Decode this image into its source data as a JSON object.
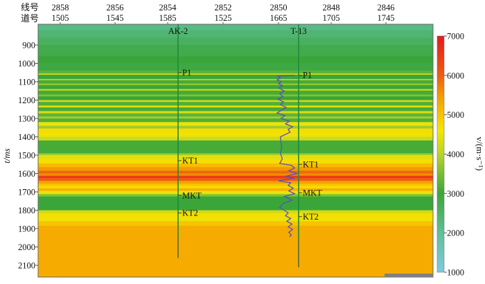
{
  "chart_data": {
    "type": "heatmap",
    "title": "",
    "top_axis": {
      "row_labels": [
        "线号",
        "道号"
      ],
      "line_numbers": [
        "2858",
        "2856",
        "2854",
        "2852",
        "2850",
        "2848",
        "2846"
      ],
      "trace_numbers": [
        "1505",
        "1545",
        "1585",
        "1525",
        "1665",
        "1705",
        "1745"
      ]
    },
    "ylabel": "t/ms",
    "ylim": [
      787,
      2164
    ],
    "yticks": [
      900,
      1000,
      1100,
      1200,
      1300,
      1400,
      1500,
      1600,
      1700,
      1800,
      1900,
      2000,
      2100
    ],
    "colorbar": {
      "label": "v/(m·s⁻¹)",
      "range": [
        1000,
        7000
      ],
      "ticks": [
        1000,
        2000,
        3000,
        4000,
        5000,
        6000,
        7000
      ],
      "stops": [
        [
          1000,
          "#7ecbe0"
        ],
        [
          2000,
          "#5fbf98"
        ],
        [
          3000,
          "#3aa63a"
        ],
        [
          4000,
          "#b8d42a"
        ],
        [
          4600,
          "#f6e600"
        ],
        [
          5000,
          "#f7c400"
        ],
        [
          5500,
          "#f39a00"
        ],
        [
          6000,
          "#ee5c12"
        ],
        [
          7000,
          "#e31a1c"
        ]
      ]
    },
    "velocity_layers": [
      [
        787,
        2200
      ],
      [
        820,
        2400
      ],
      [
        860,
        2600
      ],
      [
        900,
        2800
      ],
      [
        960,
        3000
      ],
      [
        1000,
        2900
      ],
      [
        1040,
        3300
      ],
      [
        1055,
        4200
      ],
      [
        1062,
        3000
      ],
      [
        1085,
        4000
      ],
      [
        1092,
        3100
      ],
      [
        1110,
        3800
      ],
      [
        1118,
        3000
      ],
      [
        1140,
        4300
      ],
      [
        1148,
        3100
      ],
      [
        1170,
        3600
      ],
      [
        1180,
        3000
      ],
      [
        1200,
        4200
      ],
      [
        1210,
        3200
      ],
      [
        1230,
        4400
      ],
      [
        1240,
        3100
      ],
      [
        1260,
        4300
      ],
      [
        1272,
        3300
      ],
      [
        1290,
        3900
      ],
      [
        1300,
        3200
      ],
      [
        1320,
        4500
      ],
      [
        1340,
        3800
      ],
      [
        1355,
        4700
      ],
      [
        1380,
        4500
      ],
      [
        1400,
        4200
      ],
      [
        1420,
        3100
      ],
      [
        1490,
        3800
      ],
      [
        1500,
        4400
      ],
      [
        1520,
        4700
      ],
      [
        1545,
        5100
      ],
      [
        1565,
        5500
      ],
      [
        1585,
        5900
      ],
      [
        1600,
        5600
      ],
      [
        1612,
        6500
      ],
      [
        1625,
        6000
      ],
      [
        1640,
        5400
      ],
      [
        1655,
        5000
      ],
      [
        1668,
        4700
      ],
      [
        1680,
        5200
      ],
      [
        1695,
        4500
      ],
      [
        1712,
        3600
      ],
      [
        1725,
        3000
      ],
      [
        1800,
        4200
      ],
      [
        1815,
        4700
      ],
      [
        1840,
        4500
      ],
      [
        1860,
        5000
      ],
      [
        1885,
        5300
      ]
    ],
    "wells": [
      {
        "name": "AK-2",
        "trace": 1600,
        "bottom_ms": 2060,
        "horizons": [
          {
            "name": "P1",
            "t": 1050
          },
          {
            "name": "KT1",
            "t": 1530
          },
          {
            "name": "MKT",
            "t": 1720
          },
          {
            "name": "KT2",
            "t": 1815
          }
        ]
      },
      {
        "name": "T-13",
        "trace": 1683,
        "bottom_ms": 2110,
        "horizons": [
          {
            "name": "P1",
            "t": 1065
          },
          {
            "name": "KT1",
            "t": 1550
          },
          {
            "name": "MKT",
            "t": 1705
          },
          {
            "name": "KT2",
            "t": 1835
          }
        ]
      }
    ],
    "well_log": {
      "well": "T-13",
      "color": "#5a4fc0",
      "points": [
        [
          1065,
          5200
        ],
        [
          1070,
          2600
        ],
        [
          1080,
          3000
        ],
        [
          1090,
          2500
        ],
        [
          1100,
          3100
        ],
        [
          1110,
          2700
        ],
        [
          1120,
          3300
        ],
        [
          1135,
          2800
        ],
        [
          1150,
          3600
        ],
        [
          1165,
          2900
        ],
        [
          1180,
          3400
        ],
        [
          1195,
          2600
        ],
        [
          1210,
          3500
        ],
        [
          1225,
          3000
        ],
        [
          1240,
          3900
        ],
        [
          1255,
          3200
        ],
        [
          1270,
          2500
        ],
        [
          1285,
          3700
        ],
        [
          1300,
          3100
        ],
        [
          1315,
          4400
        ],
        [
          1330,
          3800
        ],
        [
          1345,
          4900
        ],
        [
          1360,
          4200
        ],
        [
          1375,
          4500
        ],
        [
          1400,
          3000
        ],
        [
          1430,
          3100
        ],
        [
          1460,
          3200
        ],
        [
          1490,
          3000
        ],
        [
          1520,
          3300
        ],
        [
          1545,
          2900
        ],
        [
          1555,
          4700
        ],
        [
          1570,
          5200
        ],
        [
          1585,
          4300
        ],
        [
          1600,
          5600
        ],
        [
          1615,
          3800
        ],
        [
          1625,
          5200
        ],
        [
          1640,
          2700
        ],
        [
          1650,
          4600
        ],
        [
          1665,
          4200
        ],
        [
          1680,
          5000
        ],
        [
          1695,
          4300
        ],
        [
          1710,
          5200
        ],
        [
          1725,
          3600
        ],
        [
          1745,
          4800
        ],
        [
          1765,
          3400
        ],
        [
          1785,
          2900
        ],
        [
          1800,
          3600
        ],
        [
          1815,
          4200
        ],
        [
          1830,
          3800
        ],
        [
          1845,
          4600
        ],
        [
          1860,
          4000
        ],
        [
          1875,
          4800
        ],
        [
          1890,
          4200
        ],
        [
          1905,
          4900
        ],
        [
          1920,
          4300
        ],
        [
          1935,
          4700
        ],
        [
          1945,
          4400
        ]
      ]
    }
  }
}
